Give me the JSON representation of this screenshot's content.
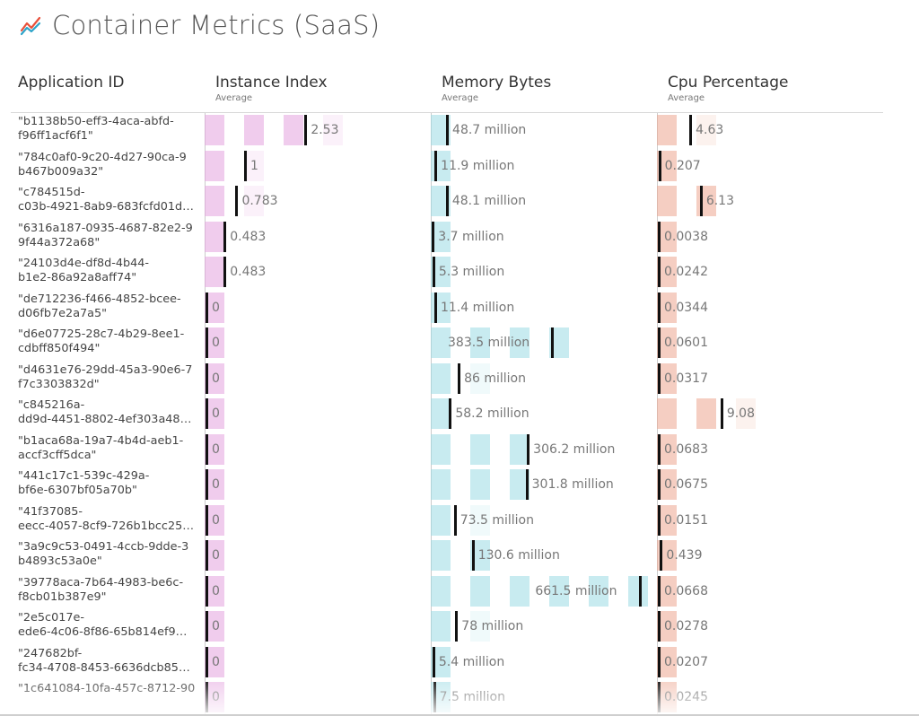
{
  "header": {
    "title": "Container Metrics (SaaS)",
    "icon": "line-chart-icon",
    "icon_colors": [
      "#e8503a",
      "#2ea4c9"
    ]
  },
  "columns": {
    "app": {
      "title": "Application ID"
    },
    "instance": {
      "title": "Instance Index",
      "sub": "Average",
      "color": "#e3a3df"
    },
    "memory": {
      "title": "Memory Bytes",
      "sub": "Average",
      "color": "#9adbe3"
    },
    "cpu": {
      "title": "Cpu Percentage",
      "sub": "Average",
      "color": "#eda58f"
    }
  },
  "chart_data": {
    "type": "table",
    "columns": [
      "Application ID",
      "Instance Index",
      "Memory Bytes",
      "Cpu Percentage"
    ],
    "rows": [
      {
        "id": "\"b1138b50-eff3-4aca-abfd-\nf96ff1acf6f1\"",
        "instance": 2.53,
        "instance_label": "2.53",
        "memory": 48.7,
        "memory_label": "48.7 million",
        "cpu": 4.63,
        "cpu_label": "4.63"
      },
      {
        "id": "\"784c0af0-9c20-4d27-90ca-9\nb467b009a32\"",
        "instance": 1,
        "instance_label": "1",
        "memory": 11.9,
        "memory_label": "11.9 million",
        "cpu": 0.207,
        "cpu_label": "0.207"
      },
      {
        "id": "\"c784515d-\nc03b-4921-8ab9-683fcfd01d…",
        "instance": 0.783,
        "instance_label": "0.783",
        "memory": 48.1,
        "memory_label": "48.1 million",
        "cpu": 6.13,
        "cpu_label": "6.13"
      },
      {
        "id": "\"6316a187-0935-4687-82e2-9\n9f44a372a68\"",
        "instance": 0.483,
        "instance_label": "0.483",
        "memory": 3.7,
        "memory_label": "3.7 million",
        "cpu": 0.0038,
        "cpu_label": "0.0038"
      },
      {
        "id": "\"24103d4e-df8d-4b44-\nb1e2-86a92a8aff74\"",
        "instance": 0.483,
        "instance_label": "0.483",
        "memory": 5.3,
        "memory_label": "5.3 million",
        "cpu": 0.0242,
        "cpu_label": "0.0242"
      },
      {
        "id": "\"de712236-f466-4852-bcee-\nd06fb7e2a7a5\"",
        "instance": 0,
        "instance_label": "0",
        "memory": 11.4,
        "memory_label": "11.4 million",
        "cpu": 0.0344,
        "cpu_label": "0.0344"
      },
      {
        "id": "\"d6e07725-28c7-4b29-8ee1-\ncdbff850f494\"",
        "instance": 0,
        "instance_label": "0",
        "memory": 383.5,
        "memory_label": "383.5 million",
        "cpu": 0.0601,
        "cpu_label": "0.0601"
      },
      {
        "id": "\"d4631e76-29dd-45a3-90e6-7\nf7c3303832d\"",
        "instance": 0,
        "instance_label": "0",
        "memory": 86,
        "memory_label": "86 million",
        "cpu": 0.0317,
        "cpu_label": "0.0317"
      },
      {
        "id": "\"c845216a-\ndd9d-4451-8802-4ef303a48…",
        "instance": 0,
        "instance_label": "0",
        "memory": 58.2,
        "memory_label": "58.2 million",
        "cpu": 9.08,
        "cpu_label": "9.08"
      },
      {
        "id": "\"b1aca68a-19a7-4b4d-aeb1-\naccf3cff5dca\"",
        "instance": 0,
        "instance_label": "0",
        "memory": 306.2,
        "memory_label": "306.2 million",
        "cpu": 0.0683,
        "cpu_label": "0.0683"
      },
      {
        "id": "\"441c17c1-539c-429a-\nbf6e-6307bf05a70b\"",
        "instance": 0,
        "instance_label": "0",
        "memory": 301.8,
        "memory_label": "301.8 million",
        "cpu": 0.0675,
        "cpu_label": "0.0675"
      },
      {
        "id": "\"41f37085-\neecc-4057-8cf9-726b1bcc25…",
        "instance": 0,
        "instance_label": "0",
        "memory": 73.5,
        "memory_label": "73.5 million",
        "cpu": 0.0151,
        "cpu_label": "0.0151"
      },
      {
        "id": "\"3a9c9c53-0491-4ccb-9dde-3\nb4893c53a0e\"",
        "instance": 0,
        "instance_label": "0",
        "memory": 130.6,
        "memory_label": "130.6 million",
        "cpu": 0.439,
        "cpu_label": "0.439"
      },
      {
        "id": "\"39778aca-7b64-4983-be6c-\nf8cb01b387e9\"",
        "instance": 0,
        "instance_label": "0",
        "memory": 661.5,
        "memory_label": "661.5 million",
        "cpu": 0.0668,
        "cpu_label": "0.0668"
      },
      {
        "id": "\"2e5c017e-\nede6-4c06-8f86-65b814ef9…",
        "instance": 0,
        "instance_label": "0",
        "memory": 78,
        "memory_label": "78 million",
        "cpu": 0.0278,
        "cpu_label": "0.0278"
      },
      {
        "id": "\"247682bf-\nfc34-4708-8453-6636dcb85…",
        "instance": 0,
        "instance_label": "0",
        "memory": 5.4,
        "memory_label": "5.4 million",
        "cpu": 0.0207,
        "cpu_label": "0.0207"
      },
      {
        "id": "\"1c641084-10fa-457c-8712-90",
        "instance": 0,
        "instance_label": "0",
        "memory": 7.5,
        "memory_label": "7.5 million",
        "cpu": 0.0245,
        "cpu_label": "0.0245"
      }
    ]
  }
}
